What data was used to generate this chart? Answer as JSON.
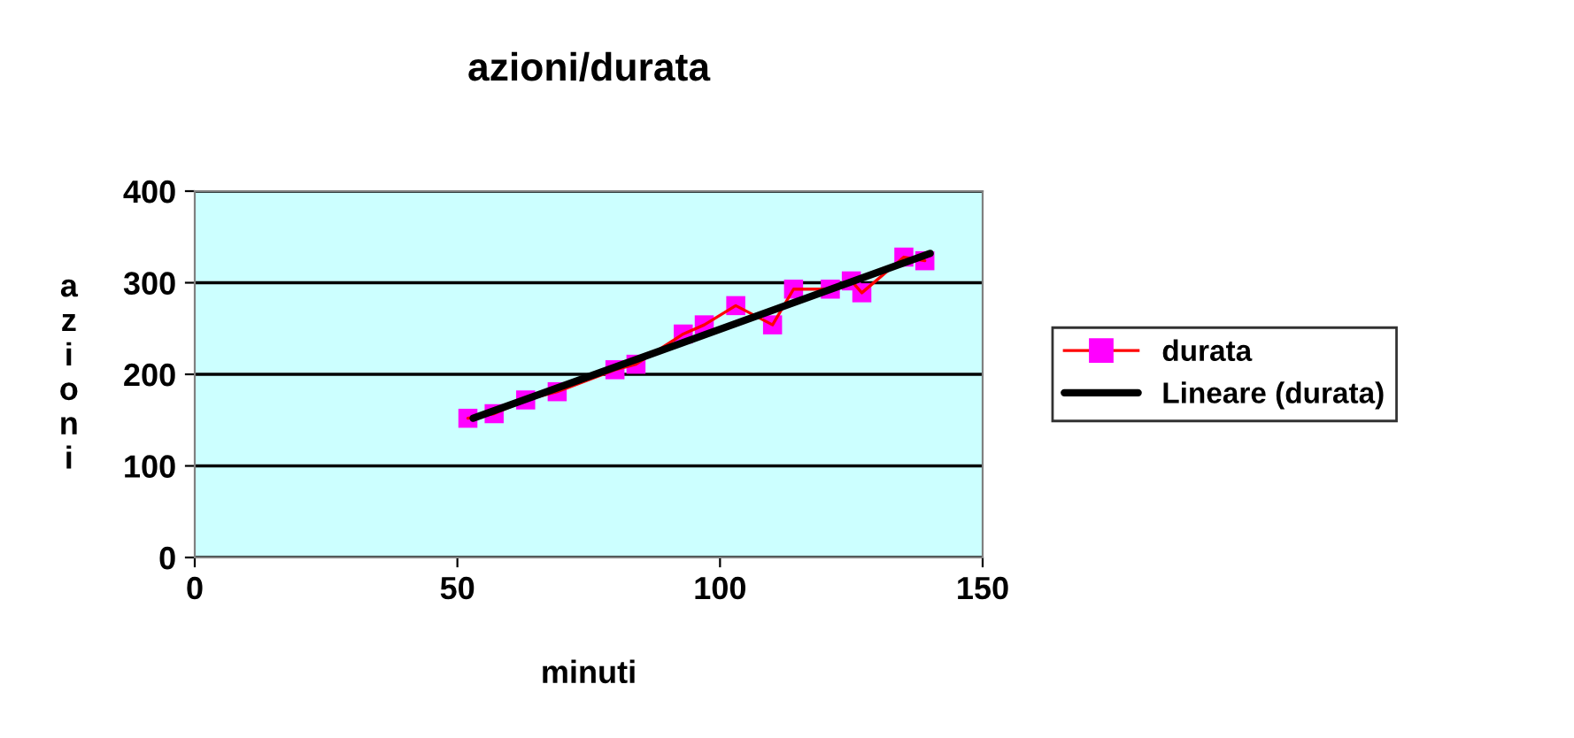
{
  "chart_data": {
    "type": "line",
    "title": "azioni/durata",
    "xlabel": "minuti",
    "ylabel": "azioni",
    "xlim": [
      0,
      150
    ],
    "xticks": [
      0,
      50,
      100,
      150
    ],
    "ylim": [
      0,
      400
    ],
    "yticks": [
      0,
      100,
      200,
      300,
      400
    ],
    "grid": "y",
    "legend": "right",
    "series": [
      {
        "name": "durata",
        "color": "#ff0000",
        "marker": "square",
        "colors": [
          "#ff00ff",
          "#ff00ff",
          "#ff00ff",
          "#ff00ff",
          "#ff00ff",
          "#ff00ff",
          "#ff00ff",
          "#ff00ff",
          "#ff00ff",
          "#ff00ff",
          "#ff00ff",
          "#ff00ff",
          "#ff00ff",
          "#ff00ff",
          "#ff00ff",
          "#ff00ff"
        ],
        "x": [
          52,
          57,
          63,
          69,
          80,
          84,
          93,
          97,
          103,
          110,
          114,
          121,
          125,
          127,
          135,
          139
        ],
        "values": [
          152,
          157,
          172,
          181,
          205,
          211,
          244,
          254,
          275,
          254,
          293,
          293,
          302,
          289,
          328,
          324
        ]
      },
      {
        "name": "Lineare (durata)",
        "type": "line",
        "color": "#000000",
        "marker": "none",
        "x": [
          53,
          140
        ],
        "values": [
          152,
          332
        ]
      }
    ]
  }
}
